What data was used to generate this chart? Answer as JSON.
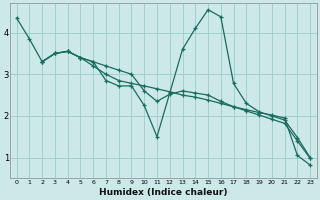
{
  "xlabel": "Humidex (Indice chaleur)",
  "bg_color": "#cce8e8",
  "grid_color": "#99cccc",
  "line_color": "#1a6b60",
  "xlim": [
    -0.5,
    23.5
  ],
  "ylim": [
    0.5,
    4.7
  ],
  "xticks": [
    0,
    1,
    2,
    3,
    4,
    5,
    6,
    7,
    8,
    9,
    10,
    11,
    12,
    13,
    14,
    15,
    16,
    17,
    18,
    19,
    20,
    21,
    22,
    23
  ],
  "yticks": [
    1,
    2,
    3,
    4
  ],
  "line1_x": [
    0,
    1,
    2,
    3,
    4,
    5,
    6,
    7,
    8,
    9,
    10,
    11,
    12,
    13,
    14,
    15,
    16,
    17,
    18,
    19,
    20,
    21,
    22,
    23
  ],
  "line1_y": [
    4.35,
    3.85,
    3.3,
    3.5,
    3.55,
    3.4,
    3.2,
    3.0,
    2.85,
    2.78,
    2.72,
    2.65,
    2.58,
    2.5,
    2.45,
    2.38,
    2.3,
    2.22,
    2.15,
    2.08,
    2.02,
    1.95,
    1.05,
    0.82
  ],
  "line2_x": [
    2,
    3,
    4,
    5,
    6,
    7,
    8,
    9,
    10,
    11,
    12,
    13,
    14,
    15,
    16,
    17,
    18,
    19,
    20,
    21,
    22,
    23
  ],
  "line2_y": [
    3.3,
    3.5,
    3.55,
    3.4,
    3.3,
    2.85,
    2.72,
    2.72,
    2.25,
    1.5,
    2.55,
    3.6,
    4.1,
    4.55,
    4.38,
    2.78,
    2.3,
    2.1,
    2.0,
    1.9,
    1.48,
    1.0
  ],
  "line3_x": [
    2,
    3,
    4,
    5,
    6,
    7,
    8,
    9,
    10,
    11,
    12,
    13,
    14,
    15,
    16,
    17,
    18,
    19,
    20,
    21,
    22,
    23
  ],
  "line3_y": [
    3.3,
    3.5,
    3.55,
    3.4,
    3.3,
    3.2,
    3.1,
    3.0,
    2.6,
    2.35,
    2.52,
    2.6,
    2.55,
    2.5,
    2.35,
    2.22,
    2.12,
    2.02,
    1.92,
    1.82,
    1.4,
    0.98
  ]
}
